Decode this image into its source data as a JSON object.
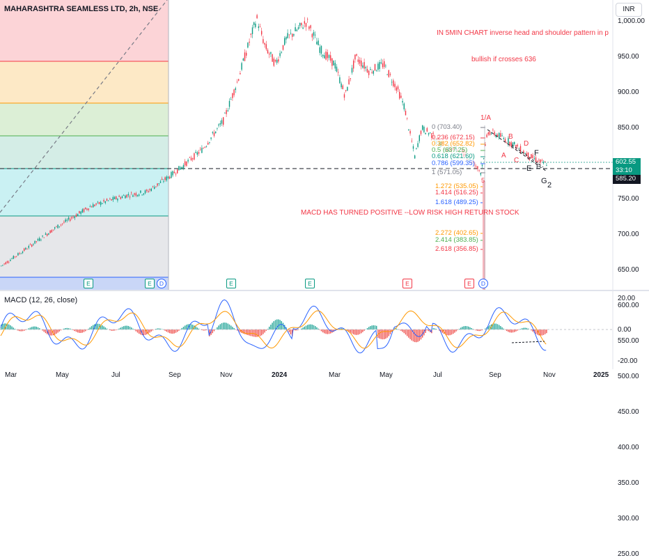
{
  "header": {
    "title": "MAHARASHTRA SEAMLESS LTD, 2h, NSE",
    "currency": "INR"
  },
  "price_axis": [
    "1,000.00",
    "950.00",
    "900.00",
    "850.00",
    "800.00",
    "750.00",
    "700.00",
    "650.00",
    "600.00",
    "550.00",
    "500.00",
    "450.00",
    "400.00",
    "350.00",
    "300.00",
    "250.00"
  ],
  "price_tags": {
    "current_price": "602.55",
    "countdown": "33:10",
    "line_price": "585.20"
  },
  "macd_axis": [
    "20.00",
    "0.00",
    "-20.00"
  ],
  "macd_title": "MACD (12, 26, close)",
  "time_axis": [
    "Mar",
    "May",
    "Jul",
    "Sep",
    "Nov",
    "2024",
    "Mar",
    "May",
    "Jul",
    "Sep",
    "Nov",
    "2025"
  ],
  "annotations": {
    "pattern_note": "IN 5MIN CHART inverse head and shoulder pattern in p",
    "bullish_note": "bullish if crosses 636",
    "macd_note": "MACD HAS TURNED POSITIVE --LOW RISK HIGH RETURN STOCK"
  },
  "fib_levels": [
    {
      "label": "0 (703.40)",
      "color": "#787b86"
    },
    {
      "label": "0.236 (672.15)",
      "color": "#f23645"
    },
    {
      "label": "0.382 (652.82)",
      "color": "#ff9800"
    },
    {
      "label": "0.5 (637.25)",
      "color": "#4caf50"
    },
    {
      "label": "0.618 (621.60)",
      "color": "#089981"
    },
    {
      "label": "0.786 (599.35)",
      "color": "#2962ff"
    },
    {
      "label": "1 (571.05)",
      "color": "#787b86"
    },
    {
      "label": "1.272 (535.05)",
      "color": "#ff9800"
    },
    {
      "label": "1.414 (516.25)",
      "color": "#f23645"
    },
    {
      "label": "1.618 (489.25)",
      "color": "#2962ff"
    },
    {
      "label": "2.272 (402.65)",
      "color": "#ff9800"
    },
    {
      "label": "2.414 (383.85)",
      "color": "#4caf50"
    },
    {
      "label": "2.618 (356.85)",
      "color": "#f23645"
    }
  ],
  "wave_labels": [
    "1/A",
    "5",
    "B",
    "A",
    "C",
    "D",
    "E",
    "F",
    "E",
    "G",
    "2"
  ],
  "event_markers": [
    {
      "letter": "E",
      "kind": "earnings-green"
    },
    {
      "letter": "E",
      "kind": "earnings-green"
    },
    {
      "letter": "D",
      "kind": "dividend"
    },
    {
      "letter": "E",
      "kind": "earnings-green"
    },
    {
      "letter": "E",
      "kind": "earnings-green"
    },
    {
      "letter": "E",
      "kind": "earnings-red"
    },
    {
      "letter": "E",
      "kind": "earnings-red"
    },
    {
      "letter": "D",
      "kind": "dividend"
    }
  ],
  "colors": {
    "up": "#089981",
    "down": "#f23645",
    "macd_line": "#2962ff",
    "signal_line": "#ff9800",
    "price_tag_green": "#089981",
    "price_tag_dark": "#131722"
  }
}
